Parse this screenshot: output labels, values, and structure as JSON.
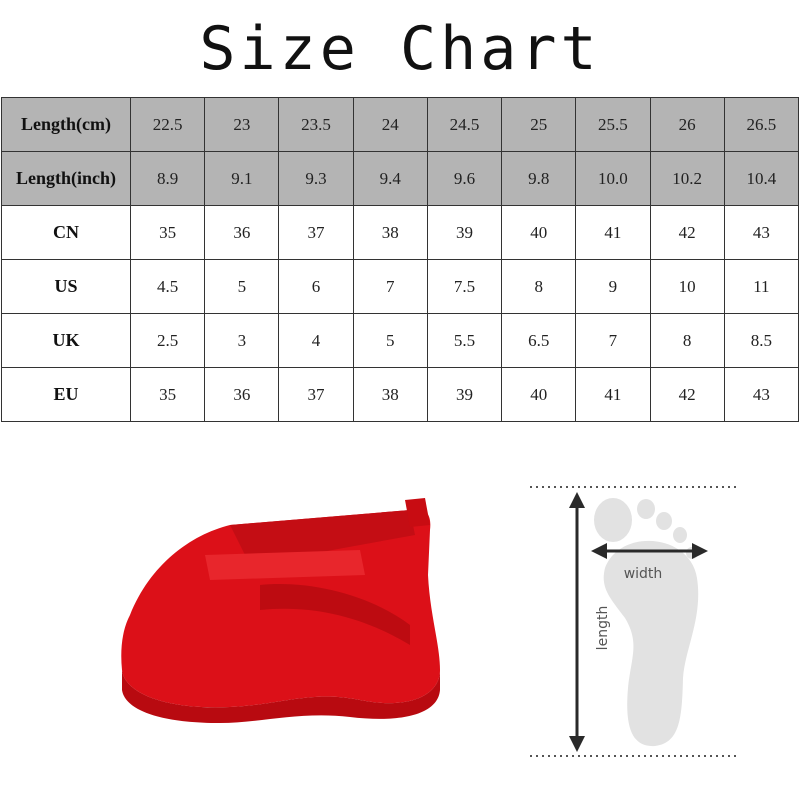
{
  "title": "Size Chart",
  "table": {
    "rows": [
      {
        "label": "Length(cm)",
        "values": [
          "22.5",
          "23",
          "23.5",
          "24",
          "24.5",
          "25",
          "25.5",
          "26",
          "26.5"
        ]
      },
      {
        "label": "Length(inch)",
        "values": [
          "8.9",
          "9.1",
          "9.3",
          "9.4",
          "9.6",
          "9.8",
          "10.0",
          "10.2",
          "10.4"
        ]
      },
      {
        "label": "CN",
        "values": [
          "35",
          "36",
          "37",
          "38",
          "39",
          "40",
          "41",
          "42",
          "43"
        ]
      },
      {
        "label": "US",
        "values": [
          "4.5",
          "5",
          "6",
          "7",
          "7.5",
          "8",
          "9",
          "10",
          "11"
        ]
      },
      {
        "label": "UK",
        "values": [
          "2.5",
          "3",
          "4",
          "5",
          "5.5",
          "6.5",
          "7",
          "8",
          "8.5"
        ]
      },
      {
        "label": "EU",
        "values": [
          "35",
          "36",
          "37",
          "38",
          "39",
          "40",
          "41",
          "42",
          "43"
        ]
      }
    ]
  },
  "foot_diagram": {
    "width_label": "width",
    "length_label": "length"
  },
  "colors": {
    "header_gray": "#b4b4b4",
    "shoe_red": "#e0141c"
  }
}
